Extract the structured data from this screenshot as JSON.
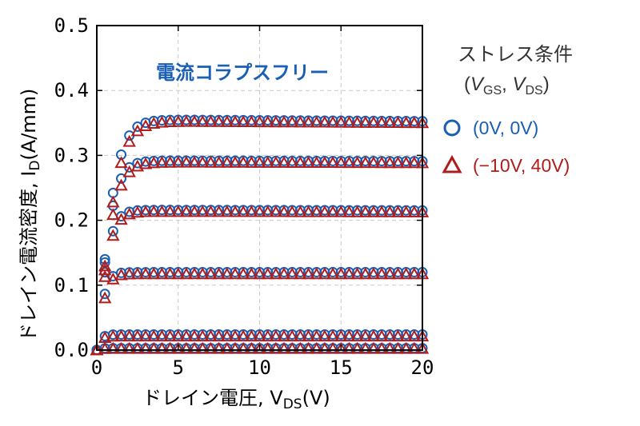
{
  "chart_data": {
    "type": "scatter",
    "xlabel": "ドレイン電圧, V",
    "xlabel_sub": "DS",
    "xlabel_unit": "(V)",
    "ylabel": "ドレイン電流密度, I",
    "ylabel_sub": "D",
    "ylabel_unit": "(A/mm)",
    "xlim": [
      0,
      20
    ],
    "ylim": [
      0,
      0.5
    ],
    "x_ticks": [
      "0",
      "5",
      "10",
      "15",
      "20"
    ],
    "y_ticks": [
      "0.0",
      "0.1",
      "0.2",
      "0.3",
      "0.4",
      "0.5"
    ],
    "grid": true,
    "annotation": "電流コラプスフリー",
    "legend": {
      "title_line1": "ストレス条件",
      "title_line2_open": "(",
      "title_v1": "V",
      "title_sub1": "GS",
      "title_sep": ", ",
      "title_v2": "V",
      "title_sub2": "DS",
      "title_close": ")",
      "placement": "right-outside"
    },
    "x_values": [
      0.0,
      0.5,
      1.0,
      1.5,
      2.0,
      2.5,
      3.0,
      3.5,
      4.0,
      4.5,
      5.0,
      5.5,
      6.0,
      6.5,
      7.0,
      7.5,
      8.0,
      8.5,
      9.0,
      9.5,
      10.0,
      10.5,
      11.0,
      11.5,
      12.0,
      12.5,
      13.0,
      13.5,
      14.0,
      14.5,
      15.0,
      15.5,
      16.0,
      16.5,
      17.0,
      17.5,
      18.0,
      18.5,
      19.0,
      19.5,
      20.0
    ],
    "series": [
      {
        "name": "(0V, 0V)",
        "marker": "circle",
        "color": "#1a5fb4",
        "curves": [
          {
            "vg_level": 1,
            "sat": 0.355,
            "knee": 1.2,
            "droop": 0.0004
          },
          {
            "vg_level": 2,
            "sat": 0.292,
            "knee": 1.0,
            "droop": 0.0002
          },
          {
            "vg_level": 3,
            "sat": 0.216,
            "knee": 0.8,
            "droop": 0.0002
          },
          {
            "vg_level": 4,
            "sat": 0.12,
            "knee": 0.55,
            "droop": 0.0
          },
          {
            "vg_level": 5,
            "sat": 0.024,
            "knee": 0.35,
            "droop": 0.0
          },
          {
            "vg_level": 6,
            "sat": 0.003,
            "knee": 0.3,
            "droop": 0.0
          }
        ]
      },
      {
        "name": "(−10V, 40V)",
        "marker": "triangle",
        "color": "#b01c1c",
        "curves": [
          {
            "vg_level": 1,
            "sat": 0.352,
            "knee": 1.3,
            "droop": 0.0004
          },
          {
            "vg_level": 2,
            "sat": 0.289,
            "knee": 1.1,
            "droop": 0.0002
          },
          {
            "vg_level": 3,
            "sat": 0.213,
            "knee": 0.85,
            "droop": 0.0002
          },
          {
            "vg_level": 4,
            "sat": 0.117,
            "knee": 0.6,
            "droop": 0.0
          },
          {
            "vg_level": 5,
            "sat": 0.021,
            "knee": 0.35,
            "droop": 0.0
          },
          {
            "vg_level": 6,
            "sat": 0.002,
            "knee": 0.3,
            "droop": 0.0
          }
        ]
      }
    ]
  }
}
